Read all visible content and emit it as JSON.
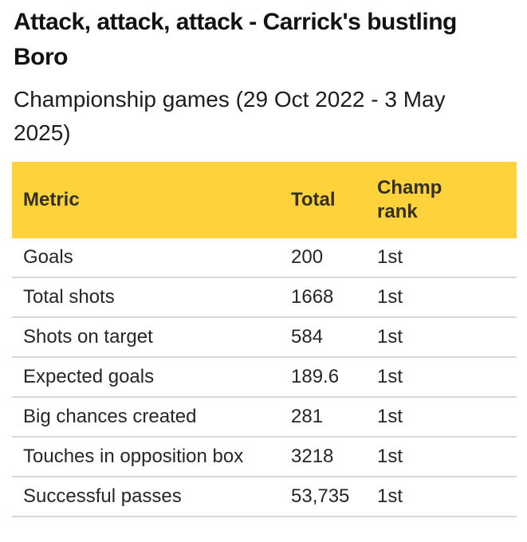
{
  "header": {
    "title": "Attack, attack, attack - Carrick's bustling Boro",
    "subtitle": "Championship games (29 Oct 2022 - 3 May 2025)"
  },
  "chart_data": {
    "type": "table",
    "title": "Attack, attack, attack - Carrick's bustling Boro",
    "subtitle": "Championship games (29 Oct 2022 - 3 May 2025)",
    "columns": [
      "Metric",
      "Total",
      "Champ rank"
    ],
    "rows": [
      {
        "metric": "Goals",
        "total": "200",
        "rank": "1st"
      },
      {
        "metric": "Total shots",
        "total": "1668",
        "rank": "1st"
      },
      {
        "metric": "Shots on target",
        "total": "584",
        "rank": "1st"
      },
      {
        "metric": "Expected goals",
        "total": "189.6",
        "rank": "1st"
      },
      {
        "metric": "Big chances created",
        "total": "281",
        "rank": "1st"
      },
      {
        "metric": "Touches in opposition box",
        "total": "3218",
        "rank": "1st"
      },
      {
        "metric": "Successful passes",
        "total": "53,735",
        "rank": "1st"
      }
    ]
  },
  "colors": {
    "header_bg": "#fdd23a",
    "header_text": "#33301f",
    "body_text": "#262626",
    "divider": "#d8d8d8",
    "background": "#ffffff"
  }
}
